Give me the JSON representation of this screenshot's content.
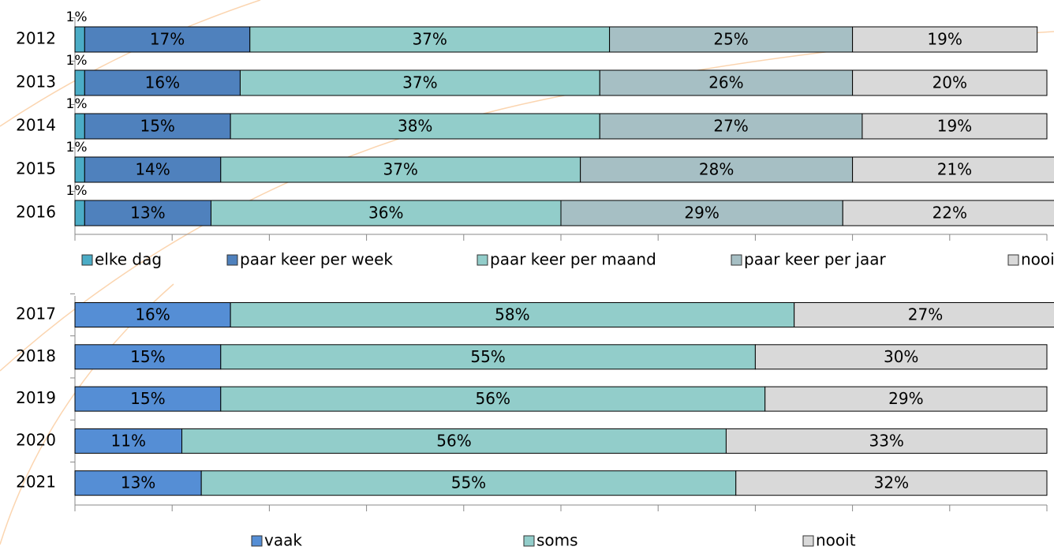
{
  "chart_data": [
    {
      "type": "stacked-bar-horizontal",
      "categories": [
        "2012",
        "2013",
        "2014",
        "2015",
        "2016"
      ],
      "xlim": [
        0,
        100
      ],
      "xticks": [
        0,
        10,
        20,
        30,
        40,
        50,
        60,
        70,
        80,
        90,
        100
      ],
      "series": [
        {
          "name": "elke dag",
          "color": "#4bacc6",
          "values": [
            1,
            1,
            1,
            1,
            1
          ],
          "value_labels": [
            "1%",
            "1%",
            "1%",
            "1%",
            "1%"
          ]
        },
        {
          "name": "paar keer per week",
          "color": "#4f81bd",
          "values": [
            17,
            16,
            15,
            14,
            13
          ],
          "value_labels": [
            "17%",
            "16%",
            "15%",
            "14%",
            "13%"
          ]
        },
        {
          "name": "paar keer per maand",
          "color": "#92cdca",
          "values": [
            37,
            37,
            38,
            37,
            36
          ],
          "value_labels": [
            "37%",
            "37%",
            "38%",
            "37%",
            "36%"
          ]
        },
        {
          "name": "paar keer per jaar",
          "color": "#a6bfc4",
          "values": [
            25,
            26,
            27,
            28,
            29
          ],
          "value_labels": [
            "25%",
            "26%",
            "27%",
            "28%",
            "29%"
          ]
        },
        {
          "name": "nooit",
          "color": "#d9d9d9",
          "values": [
            19,
            20,
            19,
            21,
            22
          ],
          "value_labels": [
            "19%",
            "20%",
            "19%",
            "21%",
            "22%"
          ]
        }
      ]
    },
    {
      "type": "stacked-bar-horizontal",
      "categories": [
        "2017",
        "2018",
        "2019",
        "2020",
        "2021"
      ],
      "xlim": [
        0,
        100
      ],
      "xticks": [
        0,
        10,
        20,
        30,
        40,
        50,
        60,
        70,
        80,
        90,
        100
      ],
      "series": [
        {
          "name": "vaak",
          "color": "#558ed5",
          "values": [
            16,
            15,
            15,
            11,
            13
          ],
          "value_labels": [
            "16%",
            "15%",
            "15%",
            "11%",
            "13%"
          ]
        },
        {
          "name": "soms",
          "color": "#92cdca",
          "values": [
            58,
            55,
            56,
            56,
            55
          ],
          "value_labels": [
            "58%",
            "55%",
            "56%",
            "56%",
            "55%"
          ]
        },
        {
          "name": "nooit",
          "color": "#d9d9d9",
          "values": [
            27,
            30,
            29,
            33,
            32
          ],
          "value_labels": [
            "27%",
            "30%",
            "29%",
            "33%",
            "32%"
          ]
        }
      ]
    }
  ]
}
